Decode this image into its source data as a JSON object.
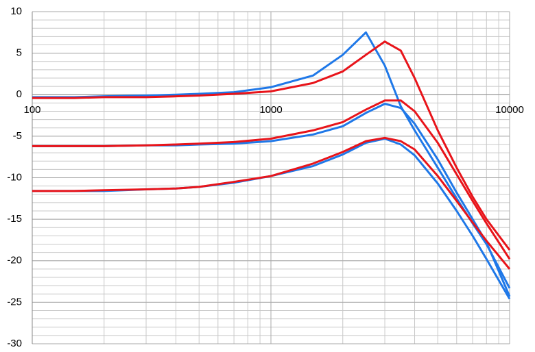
{
  "chart_data": {
    "type": "line",
    "log_x": true,
    "grid": true,
    "x": [
      100,
      150,
      200,
      300,
      400,
      500,
      700,
      1000,
      1500,
      2000,
      2500,
      3000,
      3500,
      4000,
      5000,
      6000,
      7000,
      8000,
      10000
    ],
    "series": [
      {
        "color": "#1f78e8",
        "values": [
          -0.3,
          -0.3,
          -0.2,
          -0.1,
          0.0,
          0.1,
          0.3,
          0.9,
          2.3,
          4.8,
          7.5,
          3.5,
          -1.4,
          -4.3,
          -8.8,
          -12.5,
          -15.5,
          -18.0,
          -23.3
        ]
      },
      {
        "color": "#e8141a",
        "values": [
          -0.4,
          -0.4,
          -0.3,
          -0.3,
          -0.2,
          -0.1,
          0.1,
          0.4,
          1.4,
          2.8,
          4.8,
          6.4,
          5.3,
          2.0,
          -4.3,
          -8.8,
          -12.3,
          -15.0,
          -18.7
        ]
      },
      {
        "color": "#1f78e8",
        "values": [
          -6.2,
          -6.2,
          -6.2,
          -6.1,
          -6.1,
          -6.0,
          -5.9,
          -5.6,
          -4.8,
          -3.8,
          -2.2,
          -1.1,
          -1.6,
          -3.5,
          -7.8,
          -11.8,
          -15.0,
          -17.8,
          -24.3
        ]
      },
      {
        "color": "#e8141a",
        "values": [
          -6.2,
          -6.2,
          -6.2,
          -6.1,
          -6.0,
          -5.9,
          -5.7,
          -5.3,
          -4.3,
          -3.3,
          -1.8,
          -0.7,
          -0.7,
          -2.0,
          -5.8,
          -9.6,
          -12.8,
          -15.5,
          -19.8
        ]
      },
      {
        "color": "#1f78e8",
        "values": [
          -11.6,
          -11.6,
          -11.6,
          -11.4,
          -11.3,
          -11.1,
          -10.6,
          -9.8,
          -8.6,
          -7.2,
          -5.8,
          -5.3,
          -6.0,
          -7.3,
          -10.7,
          -14.0,
          -17.0,
          -19.8,
          -24.6
        ]
      },
      {
        "color": "#e8141a",
        "values": [
          -11.6,
          -11.6,
          -11.5,
          -11.4,
          -11.3,
          -11.1,
          -10.5,
          -9.8,
          -8.3,
          -6.9,
          -5.6,
          -5.2,
          -5.6,
          -6.6,
          -9.8,
          -12.8,
          -15.4,
          -17.6,
          -21.0
        ]
      }
    ],
    "xlim": [
      100,
      10000
    ],
    "xticks": [
      100,
      1000,
      10000
    ],
    "ylim": [
      -30,
      10
    ],
    "yticks": [
      -30,
      -25,
      -20,
      -15,
      -10,
      -5,
      0,
      5,
      10
    ]
  }
}
